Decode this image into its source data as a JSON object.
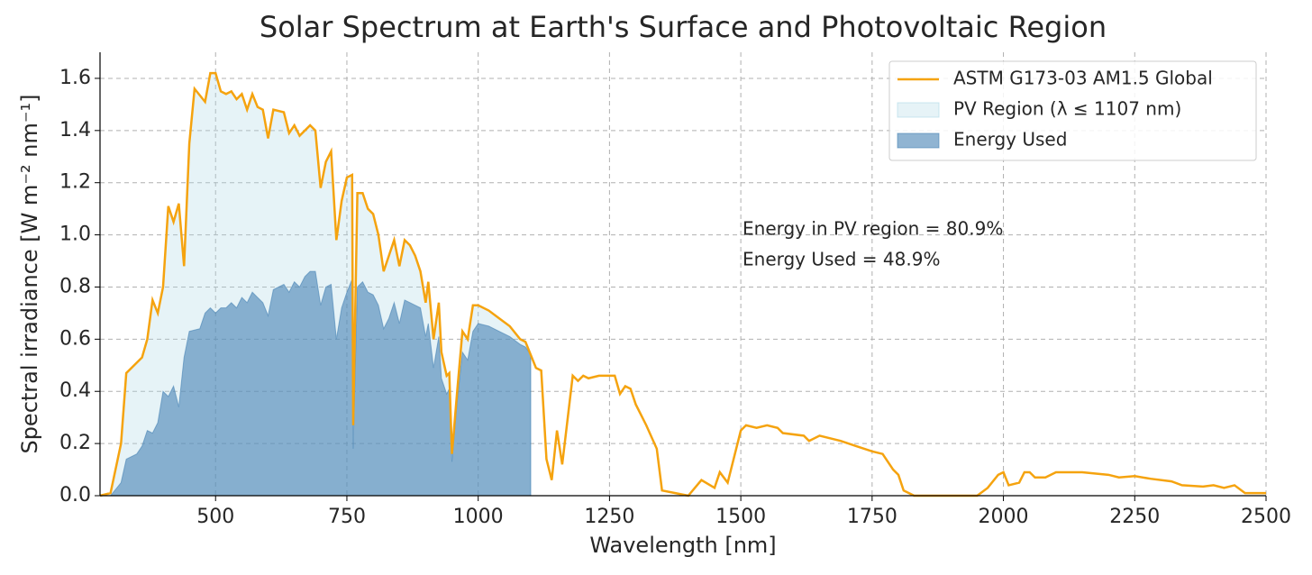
{
  "chart_data": {
    "type": "line",
    "title": "Solar Spectrum at Earth's Surface and Photovoltaic Region",
    "x_label": "Wavelength [nm]",
    "y_label": "Spectral irradiance [W m⁻² nm⁻¹]",
    "xlim": [
      280,
      2500
    ],
    "ylim": [
      0,
      1.7
    ],
    "xticks": [
      500,
      750,
      1000,
      1250,
      1500,
      1750,
      2000,
      2250,
      2500
    ],
    "yticks": [
      {
        "value": 0,
        "label": "0.0"
      },
      0.2,
      0.4,
      0.6,
      0.8,
      {
        "value": 1,
        "label": "1.0"
      },
      1.2,
      1.4,
      1.6
    ],
    "grid": true,
    "legend": "upper right",
    "pv_cutoff": 1107,
    "series": [
      {
        "name": "ASTM G173-03 AM1.5 Global",
        "color": "#f5a30f",
        "x": [
          280,
          300,
          320,
          330,
          360,
          370,
          380,
          390,
          400,
          410,
          420,
          430,
          440,
          450,
          460,
          480,
          490,
          500,
          510,
          520,
          530,
          540,
          550,
          560,
          570,
          580,
          590,
          600,
          610,
          630,
          640,
          650,
          660,
          670,
          680,
          690,
          700,
          710,
          720,
          730,
          740,
          750,
          760,
          762,
          770,
          780,
          790,
          800,
          810,
          820,
          830,
          840,
          850,
          860,
          870,
          880,
          890,
          900,
          905,
          915,
          925,
          930,
          940,
          945,
          950,
          960,
          970,
          980,
          990,
          1000,
          1020,
          1040,
          1060,
          1080,
          1090,
          1100,
          1110,
          1120,
          1130,
          1140,
          1150,
          1160,
          1180,
          1190,
          1200,
          1210,
          1230,
          1260,
          1270,
          1280,
          1290,
          1300,
          1320,
          1340,
          1350,
          1400,
          1425,
          1450,
          1460,
          1475,
          1490,
          1500,
          1510,
          1530,
          1550,
          1570,
          1580,
          1620,
          1630,
          1650,
          1670,
          1690,
          1720,
          1750,
          1770,
          1790,
          1800,
          1810,
          1830,
          1950,
          1970,
          1990,
          2000,
          2010,
          2030,
          2040,
          2050,
          2060,
          2080,
          2100,
          2150,
          2200,
          2220,
          2250,
          2280,
          2320,
          2340,
          2380,
          2400,
          2420,
          2440,
          2460,
          2500
        ],
        "values": [
          0,
          0.01,
          0.2,
          0.47,
          0.53,
          0.6,
          0.75,
          0.7,
          0.8,
          1.11,
          1.05,
          1.12,
          0.88,
          1.35,
          1.56,
          1.51,
          1.62,
          1.62,
          1.55,
          1.54,
          1.55,
          1.52,
          1.54,
          1.48,
          1.54,
          1.49,
          1.48,
          1.37,
          1.48,
          1.47,
          1.39,
          1.42,
          1.38,
          1.4,
          1.42,
          1.4,
          1.18,
          1.28,
          1.32,
          0.98,
          1.13,
          1.22,
          1.23,
          0.27,
          1.16,
          1.16,
          1.1,
          1.08,
          1,
          0.86,
          0.92,
          0.98,
          0.88,
          0.98,
          0.96,
          0.92,
          0.86,
          0.74,
          0.82,
          0.6,
          0.74,
          0.55,
          0.46,
          0.47,
          0.16,
          0.4,
          0.63,
          0.6,
          0.73,
          0.73,
          0.71,
          0.68,
          0.65,
          0.6,
          0.59,
          0.54,
          0.49,
          0.48,
          0.14,
          0.06,
          0.25,
          0.12,
          0.46,
          0.44,
          0.46,
          0.45,
          0.46,
          0.46,
          0.39,
          0.42,
          0.41,
          0.35,
          0.27,
          0.18,
          0.02,
          0,
          0.06,
          0.03,
          0.09,
          0.05,
          0.17,
          0.25,
          0.27,
          0.26,
          0.27,
          0.26,
          0.24,
          0.23,
          0.21,
          0.23,
          0.22,
          0.21,
          0.19,
          0.17,
          0.16,
          0.1,
          0.08,
          0.02,
          0,
          0,
          0.03,
          0.08,
          0.09,
          0.04,
          0.05,
          0.09,
          0.09,
          0.07,
          0.07,
          0.09,
          0.09,
          0.08,
          0.07,
          0.075,
          0.065,
          0.055,
          0.04,
          0.035,
          0.04,
          0.03,
          0.04,
          0.01,
          0.01
        ]
      },
      {
        "name": "PV Region (λ ≤ 1107 nm)",
        "color": "#add8e6"
      },
      {
        "name": "Energy Used",
        "color": "#4682b4",
        "x": [
          300,
          320,
          330,
          350,
          360,
          370,
          380,
          390,
          400,
          410,
          420,
          430,
          440,
          450,
          470,
          480,
          490,
          500,
          510,
          520,
          530,
          540,
          550,
          560,
          570,
          580,
          590,
          600,
          610,
          630,
          640,
          650,
          660,
          670,
          680,
          690,
          700,
          710,
          720,
          730,
          740,
          750,
          760,
          762,
          770,
          780,
          790,
          800,
          810,
          820,
          830,
          840,
          850,
          860,
          870,
          880,
          890,
          900,
          905,
          915,
          925,
          930,
          940,
          945,
          950,
          960,
          970,
          980,
          990,
          1000,
          1020,
          1040,
          1060,
          1080,
          1090,
          1100
        ],
        "values": [
          0,
          0.05,
          0.14,
          0.16,
          0.19,
          0.25,
          0.24,
          0.28,
          0.4,
          0.38,
          0.42,
          0.34,
          0.53,
          0.63,
          0.64,
          0.7,
          0.72,
          0.7,
          0.72,
          0.72,
          0.74,
          0.72,
          0.76,
          0.74,
          0.78,
          0.76,
          0.74,
          0.69,
          0.79,
          0.81,
          0.78,
          0.82,
          0.8,
          0.84,
          0.86,
          0.86,
          0.73,
          0.8,
          0.81,
          0.6,
          0.72,
          0.78,
          0.83,
          0.18,
          0.8,
          0.82,
          0.78,
          0.77,
          0.73,
          0.64,
          0.68,
          0.74,
          0.66,
          0.75,
          0.74,
          0.73,
          0.72,
          0.61,
          0.66,
          0.49,
          0.61,
          0.45,
          0.39,
          0.41,
          0.13,
          0.36,
          0.55,
          0.52,
          0.63,
          0.66,
          0.65,
          0.63,
          0.61,
          0.58,
          0.57,
          0.54
        ]
      }
    ],
    "annotations": [
      "Energy in PV region = 80.9%",
      "Energy Used = 48.9%"
    ]
  }
}
